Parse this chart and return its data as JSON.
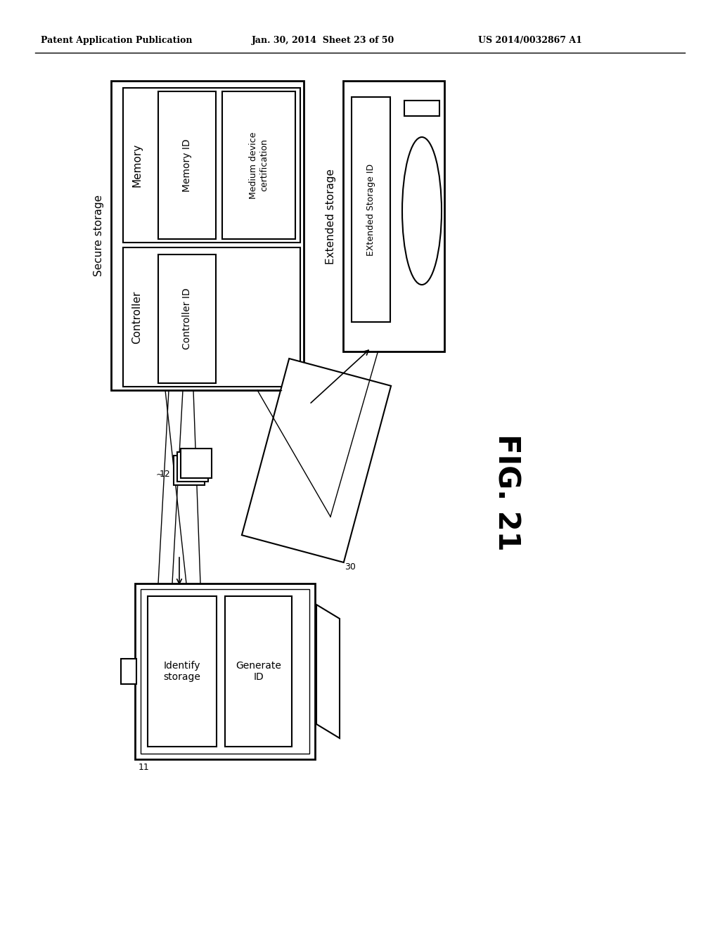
{
  "bg_color": "#ffffff",
  "header_left": "Patent Application Publication",
  "header_mid": "Jan. 30, 2014  Sheet 23 of 50",
  "header_right": "US 2014/0032867 A1",
  "fig_label": "FIG. 21",
  "label_12": "12",
  "label_30": "30",
  "label_11": "11",
  "secure_storage_label": "Secure storage",
  "extended_storage_label": "Extended storage",
  "memory_label": "Memory",
  "memory_id_label": "Memory ID",
  "medium_device_label": "Medium device\ncertification",
  "controller_label": "Controller",
  "controller_id_label": "Controller ID",
  "extended_storage_id_label": "EXtended Storage ID",
  "identify_storage_label": "Identify\nstorage",
  "generate_id_label": "Generate\nID"
}
